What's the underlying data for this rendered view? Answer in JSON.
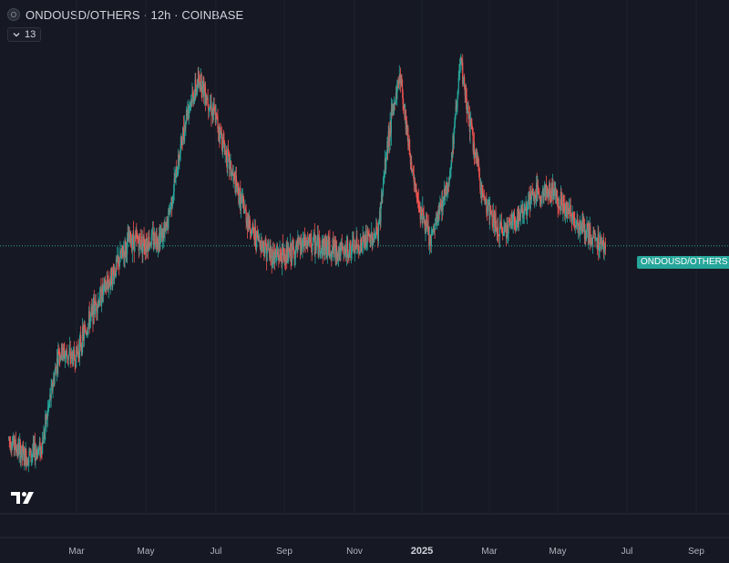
{
  "header": {
    "symbol_badge": "O",
    "title": "ONDOUSD/OTHERS · 12h · COINBASE",
    "indicator_count": "13"
  },
  "price_label": "ONDOUSD/OTHERS",
  "colors": {
    "background": "#161823",
    "up": "#26a69a",
    "down": "#ef5350",
    "grid": "#1f2230",
    "last_price_line": "#26a69a"
  },
  "icons": {
    "symbol_badge": "circle-badge",
    "collapse": "chevron-down-icon",
    "logo": "tradingview-logo"
  },
  "chart_data": {
    "type": "candlestick",
    "title": "ONDOUSD/OTHERS · 12h · COINBASE",
    "interval": "12h",
    "y_scale": "hidden",
    "x_ticks": [
      "Mar",
      "May",
      "Jul",
      "Sep",
      "Nov",
      "2025",
      "Mar",
      "May",
      "Jul",
      "Sep"
    ],
    "x_ticks_bold": [
      false,
      false,
      false,
      false,
      false,
      true,
      false,
      false,
      false,
      false
    ],
    "x": [
      "2024-01-18",
      "2024-02-01",
      "2024-02-15",
      "2024-03-01",
      "2024-03-15",
      "2024-04-01",
      "2024-04-15",
      "2024-05-01",
      "2024-05-15",
      "2024-06-01",
      "2024-06-10",
      "2024-06-20",
      "2024-07-01",
      "2024-07-15",
      "2024-08-01",
      "2024-08-15",
      "2024-09-01",
      "2024-09-15",
      "2024-10-01",
      "2024-10-15",
      "2024-11-01",
      "2024-11-15",
      "2024-12-01",
      "2024-12-10",
      "2024-12-20",
      "2025-01-01",
      "2025-01-15",
      "2025-02-01",
      "2025-02-10",
      "2025-02-20",
      "2025-03-01",
      "2025-03-15",
      "2025-04-01",
      "2025-04-15",
      "2025-05-01",
      "2025-05-15",
      "2025-06-01",
      "2025-06-15"
    ],
    "y": [
      0.11,
      0.05,
      0.08,
      0.38,
      0.36,
      0.52,
      0.61,
      0.73,
      0.72,
      0.75,
      0.93,
      1.14,
      1.23,
      1.1,
      0.89,
      0.75,
      0.68,
      0.68,
      0.72,
      0.71,
      0.69,
      0.71,
      0.75,
      1.05,
      1.25,
      0.9,
      0.72,
      0.93,
      1.28,
      1.05,
      0.87,
      0.75,
      0.8,
      0.87,
      0.88,
      0.81,
      0.74,
      0.71
    ],
    "last_value_line": 0.71,
    "grid": true,
    "legend": "none"
  }
}
